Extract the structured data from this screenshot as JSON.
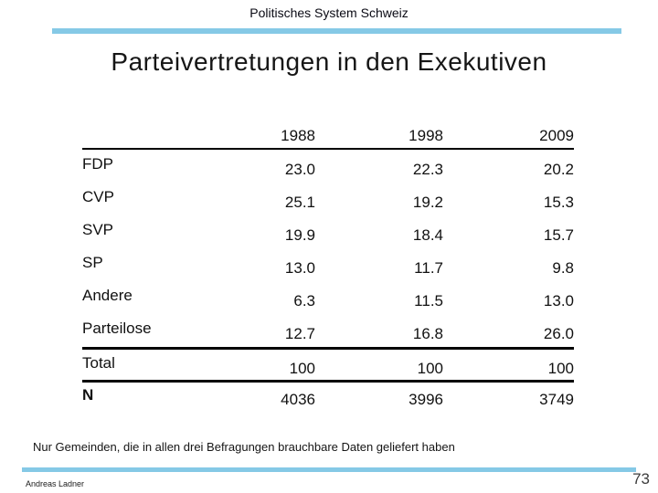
{
  "slide": {
    "header": "Politisches System Schweiz",
    "title": "Parteivertretungen in den Exekutiven",
    "footnote": "Nur Gemeinden, die in allen drei Befragungen brauchbare Daten geliefert haben",
    "author": "Andreas Ladner",
    "page_number": "73"
  },
  "colors": {
    "accent_line": "#85c9e6",
    "text": "#111111"
  },
  "chart_data": {
    "type": "table",
    "title": "Parteivertretungen in den Exekutiven",
    "columns": [
      "1988",
      "1998",
      "2009"
    ],
    "rows": [
      {
        "label": "FDP",
        "values": [
          "23.0",
          "22.3",
          "20.2"
        ]
      },
      {
        "label": "CVP",
        "values": [
          "25.1",
          "19.2",
          "15.3"
        ]
      },
      {
        "label": "SVP",
        "values": [
          "19.9",
          "18.4",
          "15.7"
        ]
      },
      {
        "label": "SP",
        "values": [
          "13.0",
          "11.7",
          "9.8"
        ]
      },
      {
        "label": "Andere",
        "values": [
          "6.3",
          "11.5",
          "13.0"
        ]
      },
      {
        "label": "Parteilose",
        "values": [
          "12.7",
          "16.8",
          "26.0"
        ]
      },
      {
        "label": "Total",
        "values": [
          "100",
          "100",
          "100"
        ]
      },
      {
        "label": "N",
        "values": [
          "4036",
          "3996",
          "3749"
        ]
      }
    ]
  }
}
